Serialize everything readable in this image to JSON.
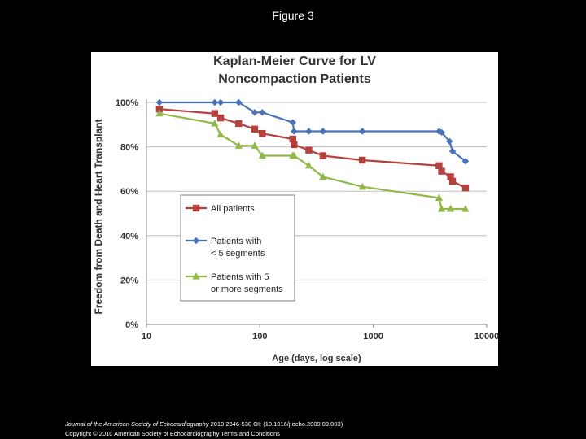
{
  "page": {
    "figure_label": "Figure 3",
    "footer": {
      "journal": "Journal of the American Society of Echocardiography",
      "citation": " 2010 2346-530 OI: (10.1016/j.echo.2009.09.003)",
      "copyright": "Copyright © 2010 American Society of Echocardiography",
      "terms_link": " Terms and Conditions"
    }
  },
  "colors": {
    "all_patients": "#b5403d",
    "lt5": "#4a72b8",
    "ge5": "#93b84a",
    "grid": "#bfbfbf",
    "axis_text": "#333333",
    "title_text": "#333333"
  },
  "chart_data": {
    "type": "line",
    "title_lines": [
      "Kaplan-Meier Curve for LV",
      "Noncompaction Patients"
    ],
    "xlabel": "Age (days, log scale)",
    "ylabel": "Freedom from Death and Heart Transplant",
    "x_scale": "log",
    "xlim": [
      10,
      10000
    ],
    "ylim": [
      0,
      1
    ],
    "x_ticks": [
      10,
      100,
      1000,
      10000
    ],
    "x_tick_labels": [
      "10",
      "100",
      "1000",
      "10000"
    ],
    "y_ticks": [
      0,
      0.2,
      0.4,
      0.6,
      0.8,
      1.0
    ],
    "y_tick_labels": [
      "0%",
      "20%",
      "40%",
      "60%",
      "80%",
      "100%"
    ],
    "grid": "horizontal",
    "legend_position": "center-left",
    "series": [
      {
        "key": "all",
        "name": "All patients",
        "name_lines": [
          "All patients"
        ],
        "marker": "square",
        "x": [
          13,
          40,
          45,
          65,
          90,
          105,
          195,
          200,
          270,
          360,
          800,
          3800,
          4000,
          4800,
          5000,
          6500
        ],
        "y": [
          0.97,
          0.95,
          0.93,
          0.905,
          0.88,
          0.86,
          0.835,
          0.81,
          0.785,
          0.76,
          0.74,
          0.715,
          0.69,
          0.665,
          0.645,
          0.615
        ]
      },
      {
        "key": "lt5",
        "name": "Patients with < 5 segments",
        "name_lines": [
          "Patients with",
          "< 5 segments"
        ],
        "marker": "diamond",
        "x": [
          13,
          40,
          45,
          65,
          90,
          105,
          195,
          200,
          270,
          360,
          800,
          3800,
          4000,
          4700,
          5000,
          6500
        ],
        "y": [
          1.0,
          1.0,
          1.0,
          1.0,
          0.955,
          0.955,
          0.91,
          0.87,
          0.87,
          0.87,
          0.87,
          0.87,
          0.865,
          0.825,
          0.78,
          0.735
        ]
      },
      {
        "key": "ge5",
        "name": "Patients with 5 or more segments",
        "name_lines": [
          "Patients with 5",
          "or more segments"
        ],
        "marker": "triangle",
        "x": [
          13,
          40,
          45,
          65,
          90,
          105,
          195,
          200,
          270,
          360,
          800,
          3800,
          4000,
          4800,
          6500
        ],
        "y": [
          0.95,
          0.905,
          0.855,
          0.805,
          0.805,
          0.76,
          0.76,
          0.76,
          0.715,
          0.665,
          0.62,
          0.57,
          0.52,
          0.52,
          0.52
        ]
      }
    ]
  }
}
